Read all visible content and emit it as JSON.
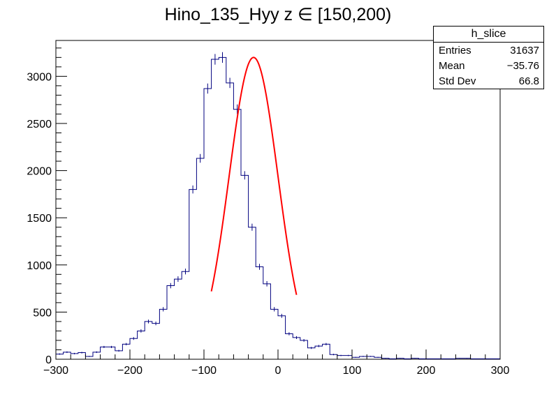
{
  "title": "Hino_135_Hyy z  ∈ [150,200)",
  "stats": {
    "name": "h_slice",
    "rows": [
      {
        "label": "Entries",
        "value": "31637"
      },
      {
        "label": "Mean",
        "value": "−35.76"
      },
      {
        "label": "Std Dev",
        "value": "66.8"
      }
    ]
  },
  "colors": {
    "histogram": "#00007f",
    "fit": "#ff0000",
    "axis": "#000000"
  },
  "chart_data": {
    "type": "histogram",
    "xlim": [
      -300,
      300
    ],
    "ylim": [
      0,
      3380
    ],
    "xticks": [
      -300,
      -200,
      -100,
      0,
      100,
      200,
      300
    ],
    "xtick_labels": [
      "−300",
      "−200",
      "−100",
      "0",
      "100",
      "200",
      "300"
    ],
    "yticks": [
      0,
      500,
      1000,
      1500,
      2000,
      2500,
      3000
    ],
    "ytick_labels": [
      "0",
      "500",
      "1000",
      "1500",
      "2000",
      "2500",
      "3000"
    ],
    "bin_width": 10,
    "bin_edges_start": -300,
    "values": [
      55,
      75,
      60,
      70,
      30,
      75,
      130,
      130,
      90,
      160,
      220,
      300,
      400,
      380,
      530,
      780,
      850,
      930,
      1800,
      2130,
      2870,
      3180,
      3200,
      2930,
      2650,
      1950,
      1400,
      980,
      800,
      530,
      460,
      270,
      230,
      200,
      120,
      140,
      160,
      50,
      40,
      40,
      20,
      30,
      30,
      20,
      10,
      5,
      10,
      5,
      10,
      5,
      5,
      5,
      5,
      5,
      10,
      10,
      5,
      5,
      5,
      5
    ],
    "fit": {
      "function": "gaus",
      "constant": 3200,
      "mean": -33,
      "sigma": 33,
      "range": [
        -90,
        25
      ]
    }
  }
}
